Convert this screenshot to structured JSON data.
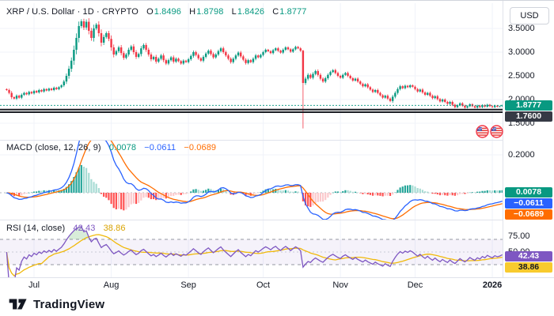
{
  "header": {
    "symbol_title": "XRP / U.S. Dollar · 1D · CRYPTO",
    "ohlc": [
      {
        "k": "O",
        "v": "1.8496"
      },
      {
        "k": "H",
        "v": "1.8798"
      },
      {
        "k": "L",
        "v": "1.8426"
      },
      {
        "k": "C",
        "v": "1.8777"
      }
    ]
  },
  "axis": {
    "currency": "USD"
  },
  "legends": {
    "macd": {
      "title": "MACD (close, 12, 26, 9)",
      "hist": "0.0078",
      "macd": "−0.0611",
      "signal": "−0.0689"
    },
    "rsi": {
      "title": "RSI (14, close)",
      "rsi": "42.43",
      "ma": "38.86"
    }
  },
  "badges": {
    "price": "1.8777",
    "level": "1.7600",
    "macd_hist": "0.0078",
    "macd": "−0.0611",
    "macd_signal": "−0.0689",
    "rsi": "42.43",
    "rsi_ma": "38.86"
  },
  "icons": {
    "events": "us-flag-event"
  },
  "footer": {
    "brand": "TradingView"
  },
  "chart_data": [
    {
      "type": "candlestick",
      "title": "XRP / U.S. Dollar",
      "interval": "1D",
      "exchange": "CRYPTO",
      "current": {
        "open": 1.8496,
        "high": 1.8798,
        "low": 1.8426,
        "close": 1.8777
      },
      "y_ticks": [
        {
          "label": "3.5000",
          "value": 3.5
        },
        {
          "label": "3.0000",
          "value": 3.0
        },
        {
          "label": "2.5000",
          "value": 2.5
        },
        {
          "label": "2.0000",
          "value": 2.0
        },
        {
          "label": "1.5000",
          "value": 1.5
        }
      ],
      "x_ticks": [
        {
          "label": "Jul",
          "index": 11
        },
        {
          "label": "Aug",
          "index": 42
        },
        {
          "label": "Sep",
          "index": 73
        },
        {
          "label": "Oct",
          "index": 103
        },
        {
          "label": "Nov",
          "index": 134
        },
        {
          "label": "Dec",
          "index": 164
        },
        {
          "label": "2026",
          "index": 195,
          "bold": true
        }
      ],
      "levels": [
        {
          "value": 1.8777,
          "style": "dashed",
          "color": "#089981"
        },
        {
          "value": 1.76,
          "style": "double",
          "color": "#1C1E24"
        }
      ],
      "colors": {
        "up": "#089981",
        "down": "#F23645"
      },
      "y_range": [
        1.15,
        4.083
      ],
      "closes": [
        2.2,
        2.14,
        2.05,
        2.02,
        2.08,
        2.04,
        2.1,
        2.14,
        2.11,
        2.16,
        2.13,
        2.18,
        2.15,
        2.2,
        2.17,
        2.22,
        2.19,
        2.23,
        2.2,
        2.25,
        2.22,
        2.26,
        2.3,
        2.38,
        2.5,
        2.65,
        2.82,
        3.05,
        3.3,
        3.55,
        3.65,
        3.52,
        3.64,
        3.45,
        3.3,
        3.5,
        3.58,
        3.4,
        3.2,
        3.32,
        3.4,
        3.28,
        3.1,
        2.95,
        3.02,
        3.1,
        2.98,
        2.88,
        2.95,
        3.05,
        3.12,
        3.0,
        2.9,
        2.96,
        3.08,
        3.15,
        3.05,
        2.95,
        2.85,
        2.9,
        2.8,
        2.86,
        2.93,
        2.83,
        2.76,
        2.83,
        2.89,
        2.8,
        2.86,
        2.81,
        2.76,
        2.82,
        2.79,
        2.85,
        2.92,
        3.0,
        2.94,
        2.87,
        2.82,
        2.9,
        2.97,
        3.03,
        2.96,
        2.89,
        2.95,
        3.02,
        3.08,
        3.0,
        2.93,
        2.86,
        2.79,
        2.86,
        2.93,
        2.99,
        2.91,
        2.84,
        2.77,
        2.83,
        2.79,
        2.86,
        2.93,
        2.89,
        2.94,
        3.0,
        3.05,
        3.02,
        2.98,
        3.04,
        3.08,
        3.03,
        2.99,
        3.05,
        3.1,
        3.06,
        3.01,
        3.06,
        3.11,
        3.08,
        3.03,
        2.35,
        2.44,
        2.52,
        2.46,
        2.54,
        2.6,
        2.52,
        2.44,
        2.38,
        2.45,
        2.52,
        2.58,
        2.62,
        2.56,
        2.5,
        2.46,
        2.52,
        2.56,
        2.5,
        2.45,
        2.4,
        2.44,
        2.38,
        2.33,
        2.28,
        2.32,
        2.26,
        2.21,
        2.16,
        2.2,
        2.14,
        2.09,
        2.04,
        2.08,
        2.02,
        1.97,
        2.06,
        2.14,
        2.22,
        2.28,
        2.24,
        2.29,
        2.26,
        2.3,
        2.27,
        2.22,
        2.17,
        2.21,
        2.15,
        2.1,
        2.14,
        2.08,
        2.03,
        2.07,
        2.01,
        1.96,
        2.0,
        1.95,
        1.91,
        1.95,
        1.89,
        1.84,
        1.88,
        1.92,
        1.87,
        1.83,
        1.86,
        1.9,
        1.86,
        1.83,
        1.87,
        1.84,
        1.88,
        1.85,
        1.89,
        1.86,
        1.84,
        1.87,
        1.85,
        1.86,
        1.8777
      ],
      "wick_overrides": {
        "119": [
          3.05,
          1.39
        ]
      }
    },
    {
      "type": "line",
      "indicator": "macd",
      "params": {
        "source": "close",
        "fast": 12,
        "slow": 26,
        "signal": 9
      },
      "values": {
        "histogram": 0.0078,
        "macd": -0.0611,
        "signal": -0.0689
      },
      "computed_from_closes": true,
      "y_ticks": [
        {
          "label": "0.2000",
          "value": 0.2
        }
      ],
      "y_range": [
        -0.1417,
        0.275
      ],
      "colors": {
        "macd": "#2962FF",
        "signal": "#FF6D00",
        "hist_up": "#26A69A",
        "hist_up_fade": "#A8DCD4",
        "hist_down": "#FF5252",
        "hist_down_fade": "#FBC9CC"
      }
    },
    {
      "type": "line",
      "indicator": "rsi",
      "params": {
        "length": 14,
        "source": "close"
      },
      "values": {
        "rsi": 42.43,
        "ma": 38.86
      },
      "computed_from_closes": true,
      "y_ticks": [
        {
          "label": "75.00",
          "value": 75
        },
        {
          "label": "50.00",
          "value": 50
        }
      ],
      "bands": {
        "upper": 70,
        "middle": 50,
        "lower": 30
      },
      "y_range": [
        10,
        100
      ],
      "colors": {
        "rsi": "#7E57C2",
        "ma": "#F0B90B",
        "band_fill": "rgba(126,87,194,0.08)",
        "overbought_fill": "rgba(76,175,80,0.22)",
        "band_line": "#9598A1"
      }
    }
  ]
}
